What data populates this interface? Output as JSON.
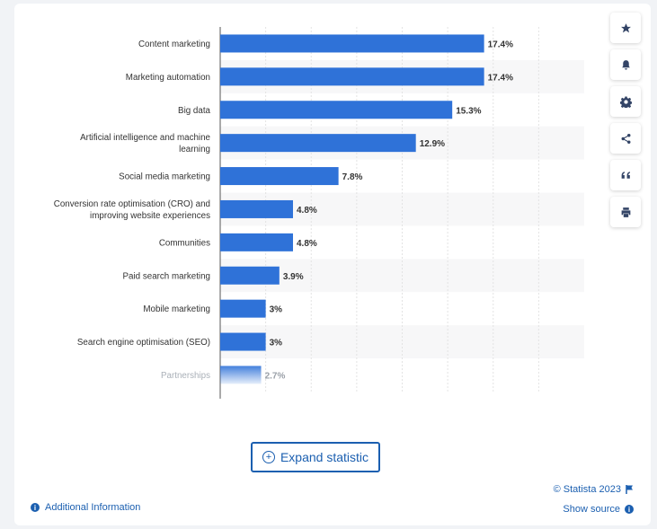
{
  "chart_data": {
    "type": "bar",
    "orientation": "horizontal",
    "categories": [
      [
        "Content marketing"
      ],
      [
        "Marketing automation"
      ],
      [
        "Big data"
      ],
      [
        "Artificial intelligence and machine",
        "learning"
      ],
      [
        "Social media marketing"
      ],
      [
        "Conversion rate optimisation (CRO) and",
        "improving website experiences"
      ],
      [
        "Communities"
      ],
      [
        "Paid search marketing"
      ],
      [
        "Mobile marketing"
      ],
      [
        "Search engine optimisation (SEO)"
      ],
      [
        "Partnerships"
      ]
    ],
    "values": [
      17.4,
      17.4,
      15.3,
      12.9,
      7.8,
      4.8,
      4.8,
      3.9,
      3,
      3,
      2.7
    ],
    "value_labels": [
      "17.4%",
      "17.4%",
      "15.3%",
      "12.9%",
      "7.8%",
      "4.8%",
      "4.8%",
      "3.9%",
      "3%",
      "3%",
      "2.7%"
    ],
    "xlim": [
      0,
      24
    ],
    "bar_color": "#2f72d8",
    "grid": true
  },
  "toolbar": {
    "icons": [
      "star-icon",
      "bell-icon",
      "gear-icon",
      "share-icon",
      "quote-icon",
      "print-icon"
    ]
  },
  "expand_label": "Expand statistic",
  "additional_info": "Additional Information",
  "copyright": "© Statista 2023",
  "show_source": "Show source"
}
